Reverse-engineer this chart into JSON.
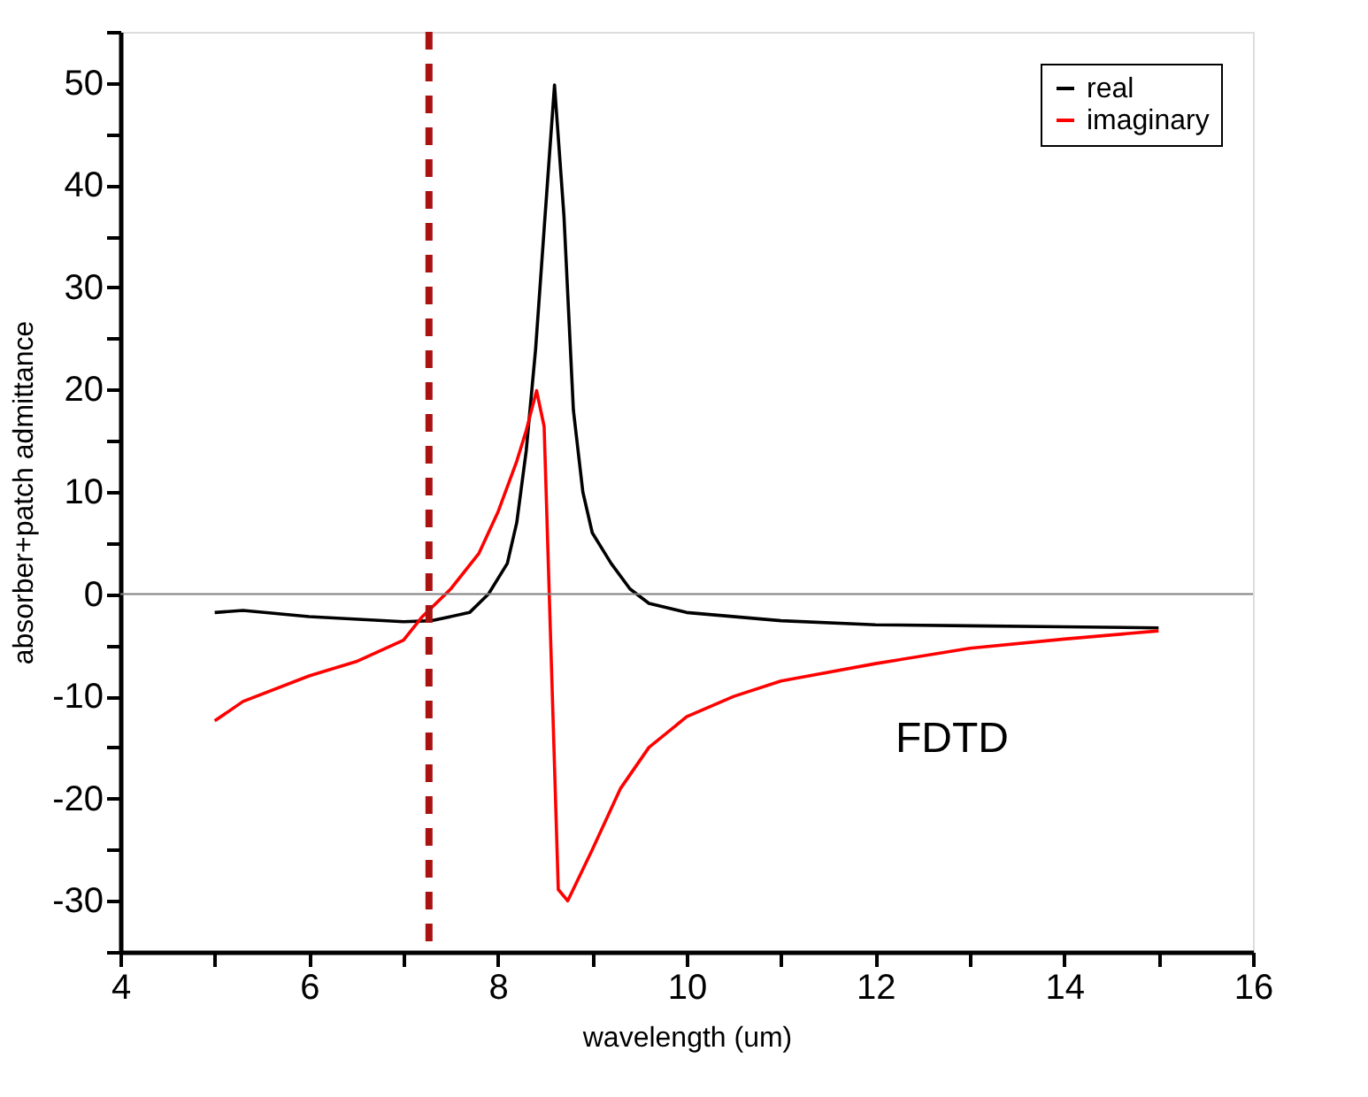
{
  "chart_data": {
    "type": "line",
    "xlabel": "wavelength (um)",
    "ylabel": "absorber+patch admittance",
    "xlim": [
      4,
      16
    ],
    "ylim": [
      -35,
      55
    ],
    "xticks": [
      4,
      {
        "value": 5,
        "label": null
      },
      6,
      {
        "value": 7,
        "label": null
      },
      8,
      {
        "value": 9,
        "label": null
      },
      10,
      {
        "value": 11,
        "label": null
      },
      12,
      {
        "value": 13,
        "label": null
      },
      14,
      {
        "value": 15,
        "label": null
      },
      16
    ],
    "yticks": [
      {
        "value": -35,
        "label": null
      },
      -30,
      {
        "value": -25,
        "label": null
      },
      -20,
      {
        "value": -15,
        "label": null
      },
      -10,
      {
        "value": -5,
        "label": null
      },
      0,
      {
        "value": 5,
        "label": null
      },
      10,
      {
        "value": 15,
        "label": null
      },
      20,
      {
        "value": 25,
        "label": null
      },
      30,
      {
        "value": 35,
        "label": null
      },
      40,
      {
        "value": 45,
        "label": null
      },
      50,
      {
        "value": 55,
        "label": null
      }
    ],
    "series": [
      {
        "name": "real",
        "color": "#000000",
        "x": [
          5,
          5.3,
          6,
          7,
          7.3,
          7.7,
          7.9,
          8.1,
          8.2,
          8.3,
          8.4,
          8.5,
          8.6,
          8.7,
          8.8,
          8.9,
          9.0,
          9.2,
          9.4,
          9.6,
          10,
          11,
          12,
          13,
          14,
          15
        ],
        "values": [
          -1.8,
          -1.6,
          -2.2,
          -2.7,
          -2.6,
          -1.8,
          0,
          3,
          7,
          14,
          24,
          37,
          49.8,
          37,
          18,
          10,
          6,
          3,
          0.5,
          -0.9,
          -1.8,
          -2.6,
          -3.0,
          -3.1,
          -3.2,
          -3.3
        ]
      },
      {
        "name": "imaginary",
        "color": "#ff0000",
        "x": [
          5,
          5.3,
          6,
          6.5,
          7,
          7.2,
          7.5,
          7.8,
          8.0,
          8.2,
          8.3,
          8.41,
          8.49,
          8.64,
          8.74,
          9.0,
          9.3,
          9.6,
          10,
          10.5,
          11,
          12,
          13,
          14,
          15
        ],
        "values": [
          -12.4,
          -10.5,
          -8,
          -6.6,
          -4.5,
          -2.2,
          0.5,
          4,
          8,
          13,
          16,
          19.9,
          16.4,
          -28.9,
          -30,
          -25,
          -19,
          -15,
          -12,
          -10,
          -8.5,
          -6.8,
          -5.3,
          -4.4,
          -3.6
        ]
      }
    ],
    "ref_lines": [
      {
        "axis": "y",
        "value": 0,
        "color": "#808080",
        "line_style": "solid"
      },
      {
        "axis": "x",
        "value": 7.27,
        "color": "#aa1111",
        "line_style": "dashed"
      }
    ],
    "annotations": [
      "FDTD"
    ],
    "legend": "top right",
    "grid": false,
    "line_style": "solid",
    "marker": "none"
  }
}
